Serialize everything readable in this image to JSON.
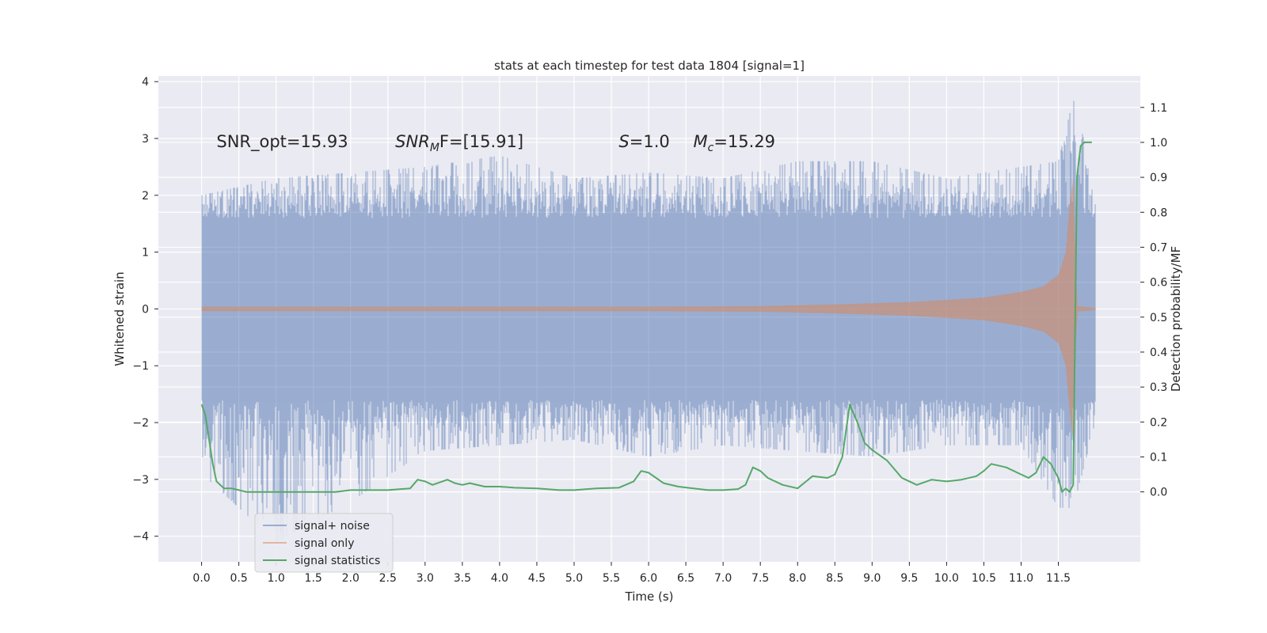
{
  "chart_data": {
    "type": "line",
    "title": "stats at each timestep for test data 1804 [signal=1]",
    "xlabel": "Time (s)",
    "ylabel": "Whitened strain",
    "ylabel_right": "Detection probability/MF",
    "xlim": [
      -0.58,
      12.6
    ],
    "ylim": [
      -4.45,
      4.1
    ],
    "ylim_right": [
      -0.2,
      1.19
    ],
    "xticks": [
      "0.0",
      "0.5",
      "1.0",
      "1.5",
      "2.0",
      "2.5",
      "3.0",
      "3.5",
      "4.0",
      "4.5",
      "5.0",
      "5.5",
      "6.0",
      "6.5",
      "7.0",
      "7.5",
      "8.0",
      "8.5",
      "9.0",
      "9.5",
      "10.0",
      "10.5",
      "11.0",
      "11.5"
    ],
    "yticks": [
      "4",
      "3",
      "2",
      "1",
      "0",
      "−1",
      "−2",
      "−3",
      "−4"
    ],
    "yticks_right": [
      "1.1",
      "1.0",
      "0.9",
      "0.8",
      "0.7",
      "0.6",
      "0.5",
      "0.4",
      "0.3",
      "0.2",
      "0.1",
      "0.0"
    ],
    "grid": true,
    "legend_position": "lower-left",
    "annotations": [
      {
        "text": "SNR_opt=15.93",
        "x": 0.2,
        "y": 2.85
      },
      {
        "main": "SNR",
        "sub": "M",
        "rest": "F=[15.91]",
        "x": 2.6,
        "y": 2.85
      },
      {
        "main": "S",
        "rest": "=1.0",
        "x": 5.6,
        "y": 2.85
      },
      {
        "main": "M",
        "sub": "c",
        "rest": "=15.29",
        "x": 6.6,
        "y": 2.85
      }
    ],
    "series": [
      {
        "name": "signal+ noise",
        "color": "#4c72b0",
        "opacity": 0.5,
        "axis": "left",
        "description": "dense noise band",
        "envelope_x": [
          0.0,
          1.0,
          2.0,
          3.0,
          4.0,
          5.0,
          6.0,
          7.0,
          8.0,
          9.0,
          10.0,
          11.0,
          11.5,
          11.7,
          12.0
        ],
        "envelope_upper": [
          2.0,
          2.3,
          2.4,
          2.5,
          2.7,
          2.3,
          2.4,
          2.3,
          2.6,
          2.6,
          2.3,
          2.5,
          2.6,
          3.7,
          2.2
        ],
        "envelope_lower": [
          -2.9,
          -4.1,
          -3.4,
          -2.5,
          -2.4,
          -2.3,
          -2.6,
          -2.4,
          -2.5,
          -2.6,
          -2.4,
          -2.4,
          -3.5,
          -3.5,
          -2.0
        ],
        "typical_extent": 1.6
      },
      {
        "name": "signal only",
        "color": "#dd8452",
        "opacity": 0.5,
        "axis": "left",
        "description": "chirp amplitude envelope",
        "x": [
          0.0,
          6.0,
          7.5,
          8.5,
          9.5,
          10.5,
          11.0,
          11.3,
          11.5,
          11.6,
          11.65,
          11.7,
          11.75,
          12.0
        ],
        "amplitude": [
          0.04,
          0.04,
          0.05,
          0.08,
          0.12,
          0.2,
          0.3,
          0.4,
          0.6,
          1.0,
          1.8,
          2.3,
          0.05,
          0.02
        ]
      },
      {
        "name": "signal statistics",
        "color": "#55a868",
        "axis": "right",
        "x": [
          0.0,
          0.05,
          0.1,
          0.15,
          0.2,
          0.3,
          0.4,
          0.5,
          0.6,
          0.7,
          0.8,
          0.9,
          1.0,
          1.2,
          1.5,
          1.8,
          2.0,
          2.2,
          2.5,
          2.8,
          2.9,
          3.0,
          3.1,
          3.3,
          3.4,
          3.5,
          3.6,
          3.8,
          4.0,
          4.2,
          4.5,
          4.8,
          5.0,
          5.3,
          5.6,
          5.8,
          5.9,
          6.0,
          6.1,
          6.2,
          6.4,
          6.6,
          6.8,
          7.0,
          7.2,
          7.3,
          7.4,
          7.5,
          7.6,
          7.8,
          8.0,
          8.2,
          8.4,
          8.5,
          8.6,
          8.7,
          8.8,
          8.9,
          9.0,
          9.2,
          9.4,
          9.6,
          9.8,
          10.0,
          10.2,
          10.4,
          10.5,
          10.6,
          10.8,
          11.0,
          11.1,
          11.2,
          11.3,
          11.4,
          11.5,
          11.55,
          11.6,
          11.65,
          11.7,
          11.75,
          11.8,
          11.85,
          11.9,
          11.95
        ],
        "values": [
          0.25,
          0.22,
          0.15,
          0.08,
          0.03,
          0.01,
          0.01,
          0.005,
          0.0,
          0.0,
          0.0,
          0.0,
          0.0,
          0.0,
          0.0,
          0.0,
          0.005,
          0.005,
          0.005,
          0.01,
          0.035,
          0.03,
          0.02,
          0.035,
          0.025,
          0.02,
          0.025,
          0.015,
          0.015,
          0.012,
          0.01,
          0.005,
          0.005,
          0.01,
          0.012,
          0.03,
          0.06,
          0.055,
          0.04,
          0.025,
          0.015,
          0.01,
          0.005,
          0.005,
          0.008,
          0.02,
          0.07,
          0.06,
          0.04,
          0.02,
          0.01,
          0.045,
          0.04,
          0.05,
          0.1,
          0.25,
          0.2,
          0.14,
          0.12,
          0.09,
          0.04,
          0.02,
          0.035,
          0.03,
          0.035,
          0.045,
          0.06,
          0.08,
          0.07,
          0.05,
          0.04,
          0.055,
          0.1,
          0.08,
          0.04,
          0.0,
          0.01,
          0.0,
          0.02,
          0.9,
          0.99,
          1.0,
          1.0,
          1.0
        ]
      }
    ]
  }
}
